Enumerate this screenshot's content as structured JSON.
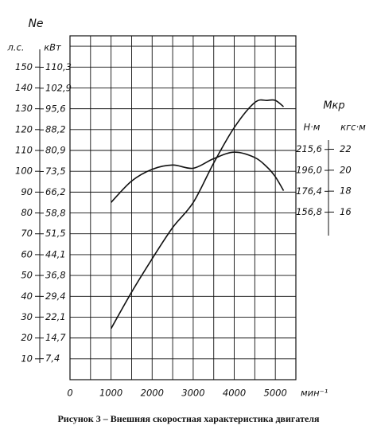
{
  "chart_data": {
    "type": "line",
    "caption": "Рисунок 3 – Внешняя скоростная характеристика двигателя",
    "y_title": "Ne",
    "y_unit": "л.с.",
    "y_unit_kw": "кВт",
    "y2_title": "Мкр",
    "y2_unit": "Н·м",
    "y2_unit_kgf": "кгс·м",
    "x_unit": "мин⁻¹",
    "x": [
      1000,
      1500,
      2000,
      2500,
      3000,
      3500,
      4000,
      4500,
      4800,
      5000,
      5200
    ],
    "series": [
      {
        "name": "Ne",
        "color": "#111111",
        "values": [
          24.5,
          42,
          58,
          73,
          85,
          104,
          121,
          133,
          134,
          134,
          131
        ]
      },
      {
        "name": "Мкр",
        "color": "#111111",
        "axis": "y2",
        "values": [
          166,
          186,
          197,
          201,
          198,
          207,
          213,
          208,
          199,
          190,
          177
        ]
      }
    ],
    "xlim": [
      0,
      5500
    ],
    "xticks": [
      0,
      1000,
      2000,
      3000,
      4000,
      5000
    ],
    "x_minor_ticks": [
      500,
      1500,
      2500,
      3500,
      4500,
      5500
    ],
    "ylim": [
      0,
      165
    ],
    "yticks": [
      10,
      20,
      30,
      40,
      50,
      60,
      70,
      80,
      90,
      100,
      110,
      120,
      130,
      140,
      150
    ],
    "y_minor_ticks": [
      160
    ],
    "ylim_kw": [
      0,
      121.4
    ],
    "yticks_kw": [
      {
        "value": 7.4,
        "label": "7,4"
      },
      {
        "value": 14.7,
        "label": "14,7"
      },
      {
        "value": 22.1,
        "label": "22,1"
      },
      {
        "value": 29.4,
        "label": "29,4"
      },
      {
        "value": 36.8,
        "label": "36,8"
      },
      {
        "value": 44.1,
        "label": "44,1"
      },
      {
        "value": 51.5,
        "label": "51,5"
      },
      {
        "value": 58.8,
        "label": "58,8"
      },
      {
        "value": 66.2,
        "label": "66,2"
      },
      {
        "value": 73.5,
        "label": "73,5"
      },
      {
        "value": 80.9,
        "label": "80,9"
      },
      {
        "value": 88.2,
        "label": "88,2"
      },
      {
        "value": 95.6,
        "label": "95,6"
      },
      {
        "value": 102.9,
        "label": "102,9"
      },
      {
        "value": 110.3,
        "label": "110,3"
      }
    ],
    "y2lim": [
      0,
      322
    ],
    "y2ticks": [
      {
        "value": 156.8,
        "label": "156,8"
      },
      {
        "value": 176.4,
        "label": "176,4"
      },
      {
        "value": 196.0,
        "label": "196,0"
      },
      {
        "value": 215.6,
        "label": "215,6"
      }
    ],
    "y2lim_kgf": [
      0,
      32.83
    ],
    "y2ticks_kgf": [
      16,
      18,
      20,
      22
    ],
    "grid": true
  }
}
